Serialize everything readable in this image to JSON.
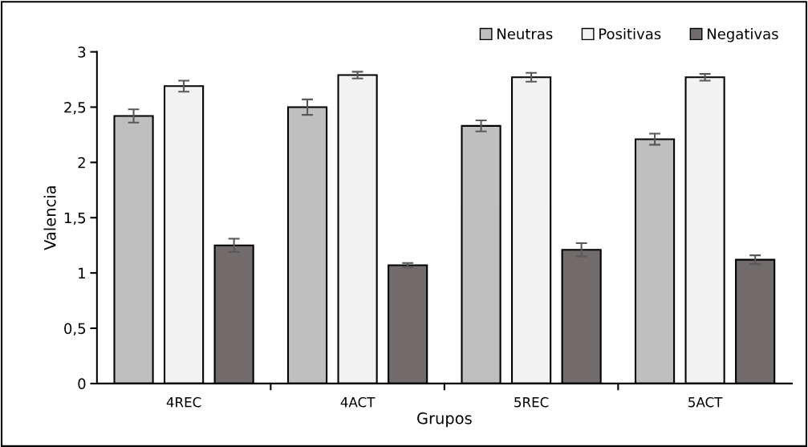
{
  "chart_data": {
    "type": "bar",
    "xlabel": "Grupos",
    "ylabel": "Valencia",
    "categories": [
      "4REC",
      "4ACT",
      "5REC",
      "5ACT"
    ],
    "series": [
      {
        "name": "Neutras",
        "color": "#bfbfbf",
        "values": [
          2.42,
          2.5,
          2.33,
          2.21
        ],
        "errors": [
          0.06,
          0.07,
          0.05,
          0.05
        ]
      },
      {
        "name": "Positivas",
        "color": "#f2f2f2",
        "values": [
          2.69,
          2.79,
          2.77,
          2.77
        ],
        "errors": [
          0.05,
          0.03,
          0.04,
          0.03
        ]
      },
      {
        "name": "Negativas",
        "color": "#716b6b",
        "values": [
          1.25,
          1.07,
          1.21,
          1.12
        ],
        "errors": [
          0.06,
          0.02,
          0.06,
          0.04
        ]
      }
    ],
    "ylim": [
      0,
      3
    ],
    "yticks": [
      0,
      {
        "value": 0.5,
        "label": "0,5"
      },
      1,
      {
        "value": 1.5,
        "label": "1,5"
      },
      2,
      {
        "value": 2.5,
        "label": "2,5"
      },
      3
    ],
    "grid": false,
    "legend": "top right"
  }
}
